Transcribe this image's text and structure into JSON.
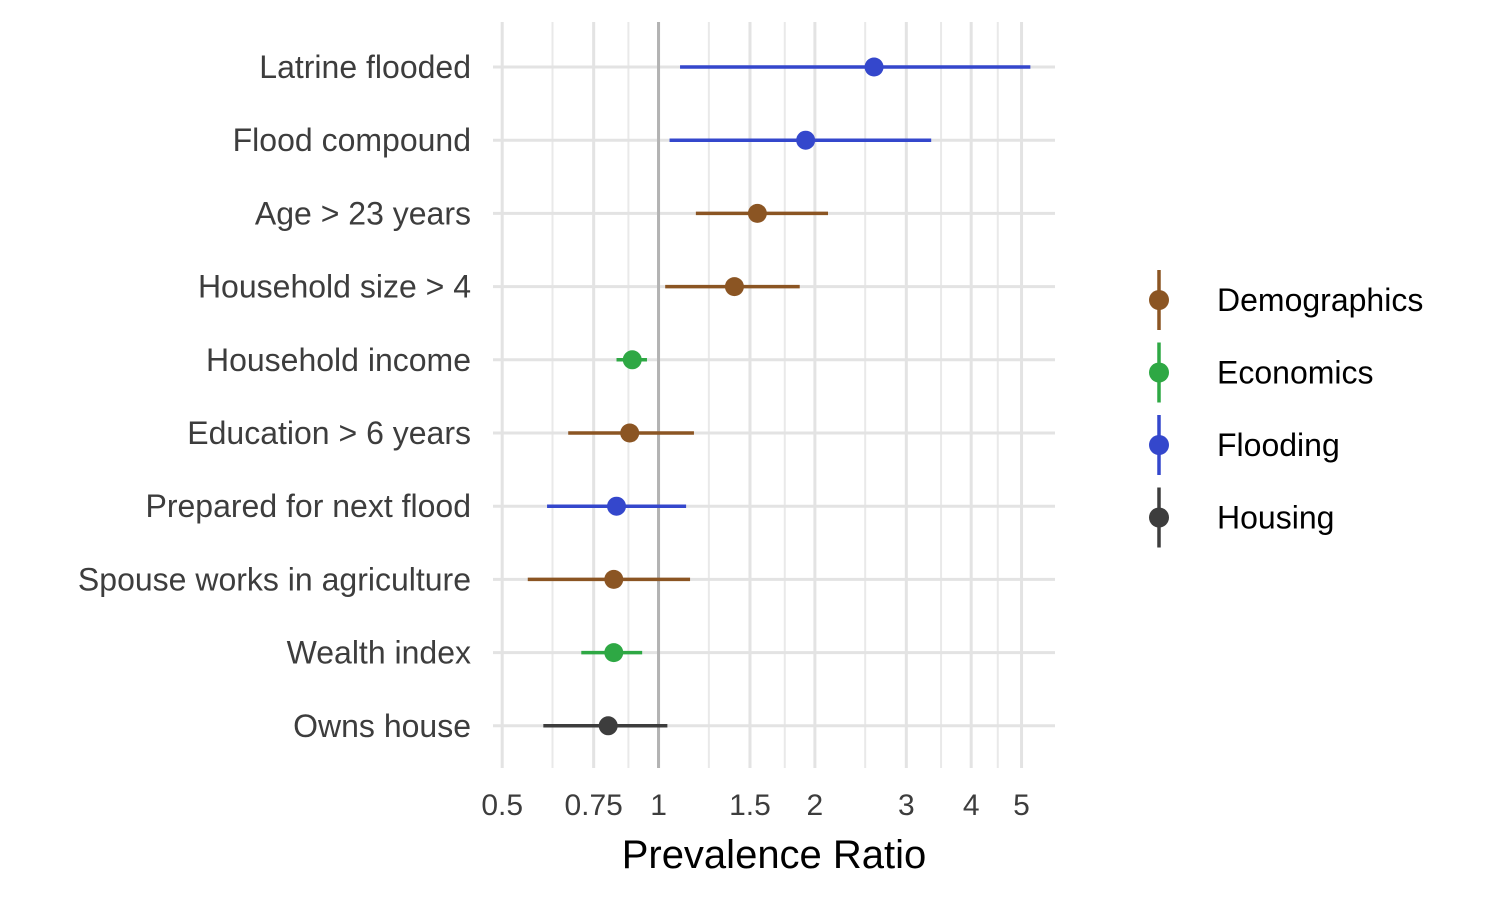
{
  "chart_data": {
    "type": "forest",
    "xlabel": "Prevalence Ratio",
    "xscale": "log",
    "xlim": [
      0.48,
      5.8
    ],
    "x_ticks": [
      0.5,
      0.75,
      1,
      1.5,
      2,
      3,
      4,
      5
    ],
    "x_tick_labels": [
      "0.5",
      "0.75",
      "1",
      "1.5",
      "2",
      "3",
      "4",
      "5"
    ],
    "x_minor_ticks": [
      0.625,
      0.875,
      1.25,
      1.75,
      2.5,
      3.5,
      4.5
    ],
    "reference_line": 1,
    "legend": {
      "position": "right",
      "entries": [
        "Demographics",
        "Economics",
        "Flooding",
        "Housing"
      ]
    },
    "colors": {
      "Demographics": "#8B5523",
      "Economics": "#2EA844",
      "Flooding": "#3447CC",
      "Housing": "#3D3D3D"
    },
    "rows": [
      {
        "label": "Latrine flooded",
        "group": "Flooding",
        "estimate": 2.6,
        "lower": 1.1,
        "upper": 5.2
      },
      {
        "label": "Flood compound",
        "group": "Flooding",
        "estimate": 1.92,
        "lower": 1.05,
        "upper": 3.35
      },
      {
        "label": "Age > 23 years",
        "group": "Demographics",
        "estimate": 1.55,
        "lower": 1.18,
        "upper": 2.12
      },
      {
        "label": "Household size > 4",
        "group": "Demographics",
        "estimate": 1.4,
        "lower": 1.03,
        "upper": 1.87
      },
      {
        "label": "Household income",
        "group": "Economics",
        "estimate": 0.89,
        "lower": 0.83,
        "upper": 0.95
      },
      {
        "label": "Education > 6 years",
        "group": "Demographics",
        "estimate": 0.88,
        "lower": 0.67,
        "upper": 1.17
      },
      {
        "label": "Prepared for next flood",
        "group": "Flooding",
        "estimate": 0.83,
        "lower": 0.61,
        "upper": 1.13
      },
      {
        "label": "Spouse works in agriculture",
        "group": "Demographics",
        "estimate": 0.82,
        "lower": 0.56,
        "upper": 1.15
      },
      {
        "label": "Wealth index",
        "group": "Economics",
        "estimate": 0.82,
        "lower": 0.71,
        "upper": 0.93
      },
      {
        "label": "Owns house",
        "group": "Housing",
        "estimate": 0.8,
        "lower": 0.6,
        "upper": 1.04
      }
    ]
  }
}
